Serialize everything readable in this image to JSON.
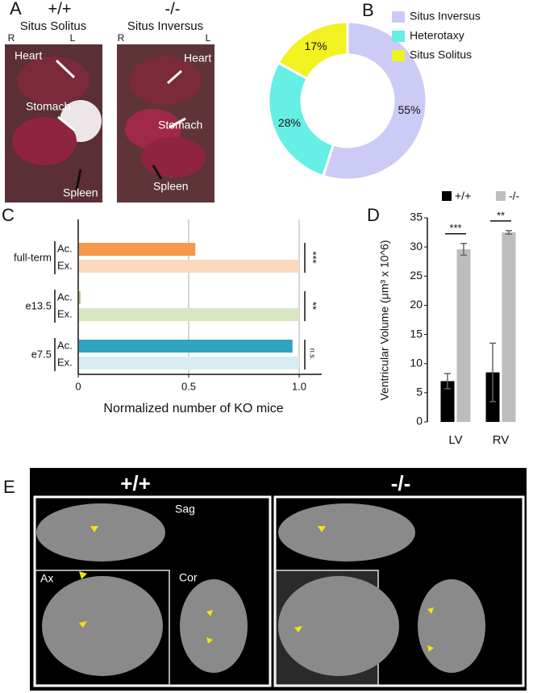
{
  "panel_labels": [
    "A",
    "B",
    "C",
    "D",
    "E"
  ],
  "panel_a": [
    {
      "genotype": "+/+",
      "title": "Situs Solitus",
      "right_side": "R",
      "left_side": "L",
      "labels": [
        "Heart",
        "Stomach",
        "Spleen"
      ]
    },
    {
      "genotype": "-/-",
      "title": "Situs Inversus",
      "right_side": "R",
      "left_side": "L",
      "labels": [
        "Heart",
        "Stomach",
        "Spleen"
      ]
    }
  ],
  "chart_data": [
    {
      "type": "pie",
      "donut": true,
      "categories": [
        "Situs Inversus",
        "Heterotaxy",
        "Situs Solitus"
      ],
      "values": [
        55,
        28,
        17
      ],
      "value_labels": [
        "55%",
        "28%",
        "17%"
      ],
      "colors": [
        "#cbcbf5",
        "#66efe4",
        "#f2f220"
      ],
      "legend": "right"
    },
    {
      "type": "grouped-hbar",
      "xlabel": "Normalized number of KO mice",
      "xlim": [
        0,
        1
      ],
      "xticks": [
        0,
        0.5,
        {
          "value": 1,
          "label": "1.0"
        }
      ],
      "grid": true,
      "groups": [
        {
          "name": "full-term",
          "significance": "***",
          "bars": [
            {
              "label": "Ac.",
              "value": 0.53,
              "color": "#f6994a"
            },
            {
              "label": "Ex.",
              "value": 1,
              "color": "#fcd9bd"
            }
          ]
        },
        {
          "name": "e13.5",
          "significance": "**",
          "bars": [
            {
              "label": "Ac.",
              "value": 0.01,
              "color": "#a3bf6a"
            },
            {
              "label": "Ex.",
              "value": 1,
              "color": "#d8e6c1"
            }
          ]
        },
        {
          "name": "e7.5",
          "significance": "n.s.",
          "bars": [
            {
              "label": "Ac.",
              "value": 0.97,
              "color": "#2fa5bf"
            },
            {
              "label": "Ex.",
              "value": 1,
              "color": "#d7edf3"
            }
          ]
        }
      ]
    },
    {
      "type": "bar",
      "ylabel": "Ventricular Volume (μm³ x 10^6)",
      "categories": [
        "LV",
        "RV"
      ],
      "ylim": [
        0,
        35
      ],
      "yticks": [
        0,
        5,
        10,
        15,
        20,
        25,
        30,
        35
      ],
      "legend": "top",
      "series": [
        {
          "name": "+/+",
          "color": "#000000",
          "values": [
            7,
            8.5
          ],
          "errors": [
            1.3,
            5
          ]
        },
        {
          "name": "-/-",
          "color": "#bdbdbd",
          "values": [
            29.6,
            32.5
          ],
          "errors": [
            1,
            0.3
          ]
        }
      ],
      "significance": [
        "***",
        "**"
      ]
    }
  ],
  "panel_e": {
    "genotypes": [
      "+/+",
      "-/-"
    ],
    "views": [
      "Sag",
      "Ax",
      "Cor"
    ]
  }
}
